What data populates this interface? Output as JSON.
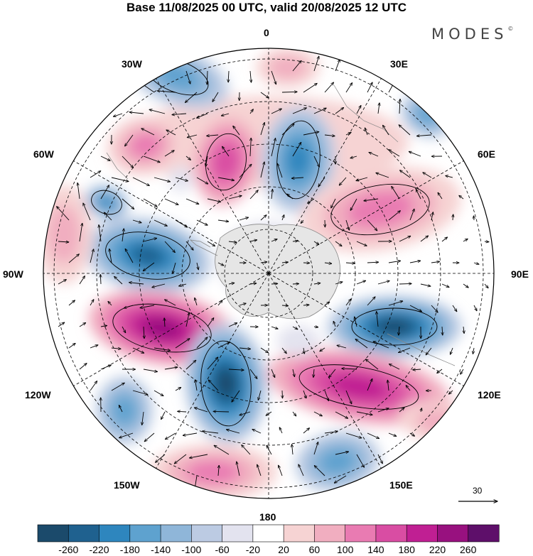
{
  "title": "Base 11/08/2025 00 UTC, valid 20/08/2025 12 UTC",
  "brand": {
    "text": "MODES",
    "mark": "©"
  },
  "longitude_labels": {
    "lon_0": "0",
    "lon_30e": "30E",
    "lon_60e": "60E",
    "lon_90e": "90E",
    "lon_120e": "120E",
    "lon_150e": "150E",
    "lon_180": "180",
    "lon_150w": "150W",
    "lon_120w": "120W",
    "lon_90w": "90W",
    "lon_60w": "60W",
    "lon_30w": "30W"
  },
  "vector_scale": {
    "label": "30"
  },
  "colorbar": {
    "colors": [
      "#1b4a6b",
      "#1f618f",
      "#2e86be",
      "#5ea2cf",
      "#8fb6d9",
      "#bccbe3",
      "#e3e3ef",
      "#ffffff",
      "#f6d3d3",
      "#f1aec0",
      "#e97bb2",
      "#d94da3",
      "#c01f93",
      "#98117f",
      "#5e0f6a"
    ],
    "labels": [
      "-260",
      "-220",
      "-180",
      "-140",
      "-100",
      "-60",
      "-20",
      "20",
      "60",
      "100",
      "140",
      "180",
      "220",
      "260"
    ]
  },
  "palette": {
    "land": "#e6e6e6",
    "coast": "#888888",
    "grid": "#000000",
    "arrow": "#000000"
  }
}
